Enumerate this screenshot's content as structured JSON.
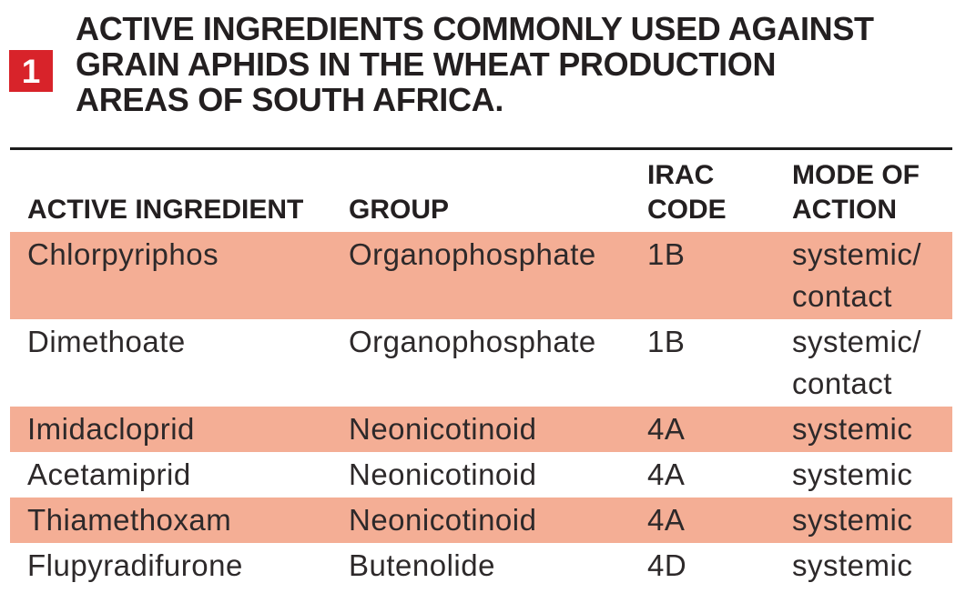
{
  "figure": {
    "number": "1",
    "title": "ACTIVE INGREDIENTS COMMONLY USED AGAINST GRAIN APHIDS IN THE WHEAT PRODUCTION AREAS OF SOUTH AFRICA."
  },
  "table": {
    "columns": [
      {
        "key": "active_ingredient",
        "label": "ACTIVE INGREDIENT"
      },
      {
        "key": "group",
        "label": "GROUP"
      },
      {
        "key": "irac_code",
        "label": "IRAC CODE"
      },
      {
        "key": "mode_of_action",
        "label": "MODE OF ACTION"
      }
    ],
    "rows": [
      {
        "active_ingredient": "Chlorpyriphos",
        "group": "Organophosphate",
        "irac_code": "1B",
        "mode_of_action": "systemic/ contact",
        "highlighted": true
      },
      {
        "active_ingredient": "Dimethoate",
        "group": "Organophosphate",
        "irac_code": "1B",
        "mode_of_action": "systemic/ contact",
        "highlighted": false
      },
      {
        "active_ingredient": "Imidacloprid",
        "group": "Neonicotinoid",
        "irac_code": "4A",
        "mode_of_action": "systemic",
        "highlighted": true
      },
      {
        "active_ingredient": "Acetamiprid",
        "group": "Neonicotinoid",
        "irac_code": "4A",
        "mode_of_action": "systemic",
        "highlighted": false
      },
      {
        "active_ingredient": "Thiamethoxam",
        "group": "Neonicotinoid",
        "irac_code": "4A",
        "mode_of_action": "systemic",
        "highlighted": true
      },
      {
        "active_ingredient": "Flupyradifurone",
        "group": "Butenolide",
        "irac_code": "4D",
        "mode_of_action": "systemic",
        "highlighted": false
      }
    ]
  },
  "colors": {
    "highlight_row": "#f4ae95",
    "figure_badge_red": "#d8232a",
    "text": "#2d292a"
  }
}
